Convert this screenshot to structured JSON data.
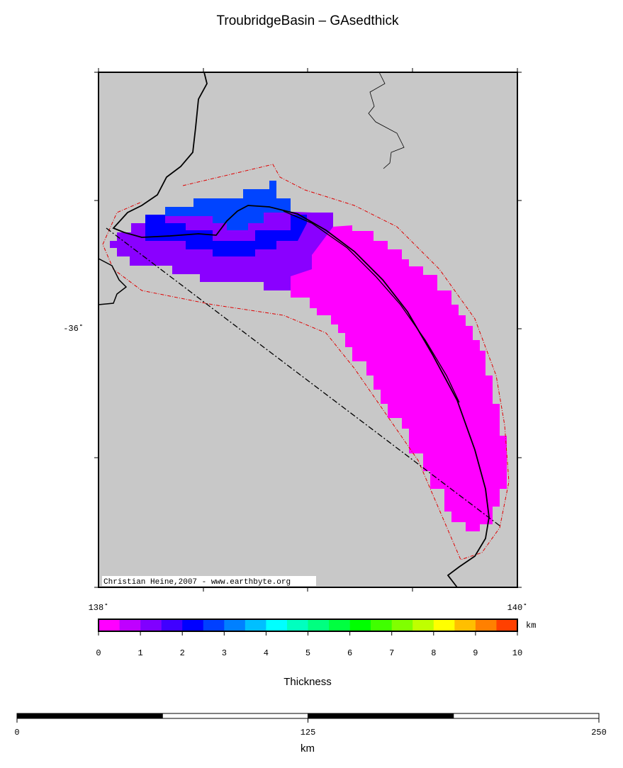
{
  "title": "TroubridgeBasin – GAsedthick",
  "map": {
    "lat_labels": [
      {
        "value": -36,
        "label": "-36˚"
      }
    ],
    "lon_labels": [
      {
        "value": 138,
        "label": "138˚"
      },
      {
        "value": 140,
        "label": "140˚"
      }
    ],
    "credit": "Christian Heine,2007 - www.earthbyte.org"
  },
  "colorbar": {
    "lim": [
      0,
      10
    ],
    "ticks": [
      0,
      1,
      2,
      3,
      4,
      5,
      6,
      7,
      8,
      9,
      10
    ],
    "unit": "km",
    "label": "Thickness",
    "colors": [
      "#ff00ff",
      "#bf00ff",
      "#8000ff",
      "#4000ff",
      "#0000ff",
      "#0040ff",
      "#0080ff",
      "#00bfff",
      "#00ffff",
      "#00ffbf",
      "#00ff80",
      "#00ff40",
      "#00ff00",
      "#40ff00",
      "#80ff00",
      "#bfff00",
      "#ffff00",
      "#ffbf00",
      "#ff8000",
      "#ff4000"
    ]
  },
  "scalebar": {
    "lim": [
      0,
      250
    ],
    "ticks": [
      0,
      125,
      250
    ],
    "unit": "km"
  }
}
